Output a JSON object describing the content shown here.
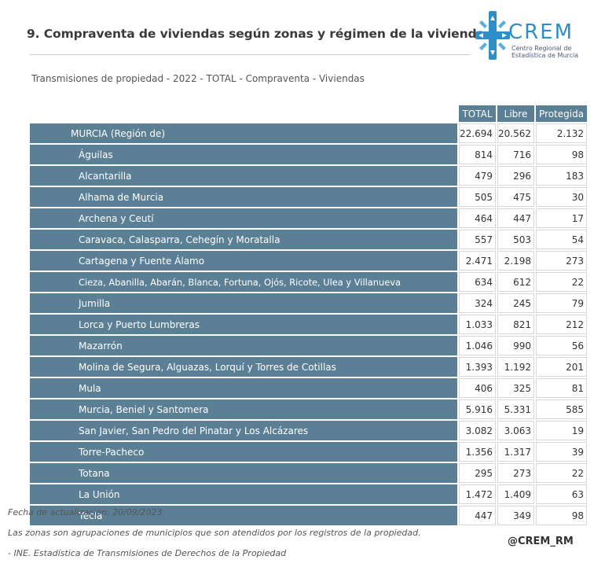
{
  "header": {
    "title": "9. Compraventa de viviendas según zonas y régimen de la vivienda.",
    "logo_word": "CREM",
    "logo_sub_1": "Centro Regional de",
    "logo_sub_2": "Estadística de Murcia",
    "logo_color": "#2e8ec7"
  },
  "subtitle": "Transmisiones de propiedad - 2022 - TOTAL - Compraventa - Viviendas",
  "table": {
    "columns": [
      "TOTAL",
      "Libre",
      "Protegida"
    ],
    "header_color": "#5b7f95",
    "rows": [
      {
        "zone": "MURCIA (Región de)",
        "total": "22.694",
        "libre": "20.562",
        "protegida": "2.132"
      },
      {
        "zone": "Águilas",
        "total": "814",
        "libre": "716",
        "protegida": "98"
      },
      {
        "zone": "Alcantarilla",
        "total": "479",
        "libre": "296",
        "protegida": "183"
      },
      {
        "zone": "Alhama de Murcia",
        "total": "505",
        "libre": "475",
        "protegida": "30"
      },
      {
        "zone": "Archena y Ceutí",
        "total": "464",
        "libre": "447",
        "protegida": "17"
      },
      {
        "zone": "Caravaca, Calasparra, Cehegín y Moratalla",
        "total": "557",
        "libre": "503",
        "protegida": "54"
      },
      {
        "zone": "Cartagena y Fuente Álamo",
        "total": "2.471",
        "libre": "2.198",
        "protegida": "273"
      },
      {
        "zone": "Cieza, Abanilla, Abarán, Blanca, Fortuna, Ojós, Ricote, Ulea y Villanueva",
        "total": "634",
        "libre": "612",
        "protegida": "22"
      },
      {
        "zone": "Jumilla",
        "total": "324",
        "libre": "245",
        "protegida": "79"
      },
      {
        "zone": "Lorca y Puerto Lumbreras",
        "total": "1.033",
        "libre": "821",
        "protegida": "212"
      },
      {
        "zone": "Mazarrón",
        "total": "1.046",
        "libre": "990",
        "protegida": "56"
      },
      {
        "zone": "Molina de Segura, Alguazas, Lorquí y Torres de Cotillas",
        "total": "1.393",
        "libre": "1.192",
        "protegida": "201"
      },
      {
        "zone": "Mula",
        "total": "406",
        "libre": "325",
        "protegida": "81"
      },
      {
        "zone": "Murcia, Beniel y Santomera",
        "total": "5.916",
        "libre": "5.331",
        "protegida": "585"
      },
      {
        "zone": "San Javier, San Pedro del Pinatar y Los Alcázares",
        "total": "3.082",
        "libre": "3.063",
        "protegida": "19"
      },
      {
        "zone": "Torre-Pacheco",
        "total": "1.356",
        "libre": "1.317",
        "protegida": "39"
      },
      {
        "zone": "Totana",
        "total": "295",
        "libre": "273",
        "protegida": "22"
      },
      {
        "zone": "La Unión",
        "total": "1.472",
        "libre": "1.409",
        "protegida": "63"
      },
      {
        "zone": "Yecla",
        "total": "447",
        "libre": "349",
        "protegida": "98"
      }
    ]
  },
  "footer": {
    "update": "Fecha de actualización: 20/09/2023.",
    "note": "Las zonas son agrupaciones de municipios que son atendidos por los registros de la propiedad.",
    "source": "- INE. Estadística de Transmisiones de Derechos de la Propiedad",
    "handle": "@CREM_RM"
  }
}
